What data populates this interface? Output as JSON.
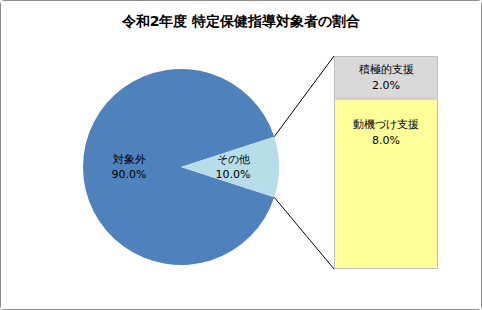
{
  "chart_data": [
    {
      "type": "pie",
      "title": "令和2年度 特定保健指導対象者の割合",
      "categories": [
        "対象外",
        "その他"
      ],
      "values": [
        90.0,
        10.0
      ],
      "value_labels": [
        "90.0%",
        "10.0%"
      ],
      "colors": [
        "#4f81bd",
        "#b7dee8"
      ],
      "data_labels": true
    },
    {
      "type": "bar",
      "stacked": true,
      "categories": [
        null
      ],
      "ylim": [
        0,
        10
      ],
      "tick_labels": false,
      "data_labels": true,
      "series": [
        {
          "name": "動機づけ支援",
          "color": "#ffff99",
          "values": [
            8.0
          ],
          "value_labels": [
            "8.0%"
          ]
        },
        {
          "name": "積極的支援",
          "color": "#d9d9d9",
          "values": [
            2.0
          ],
          "value_labels": [
            "2.0%"
          ]
        }
      ]
    }
  ]
}
